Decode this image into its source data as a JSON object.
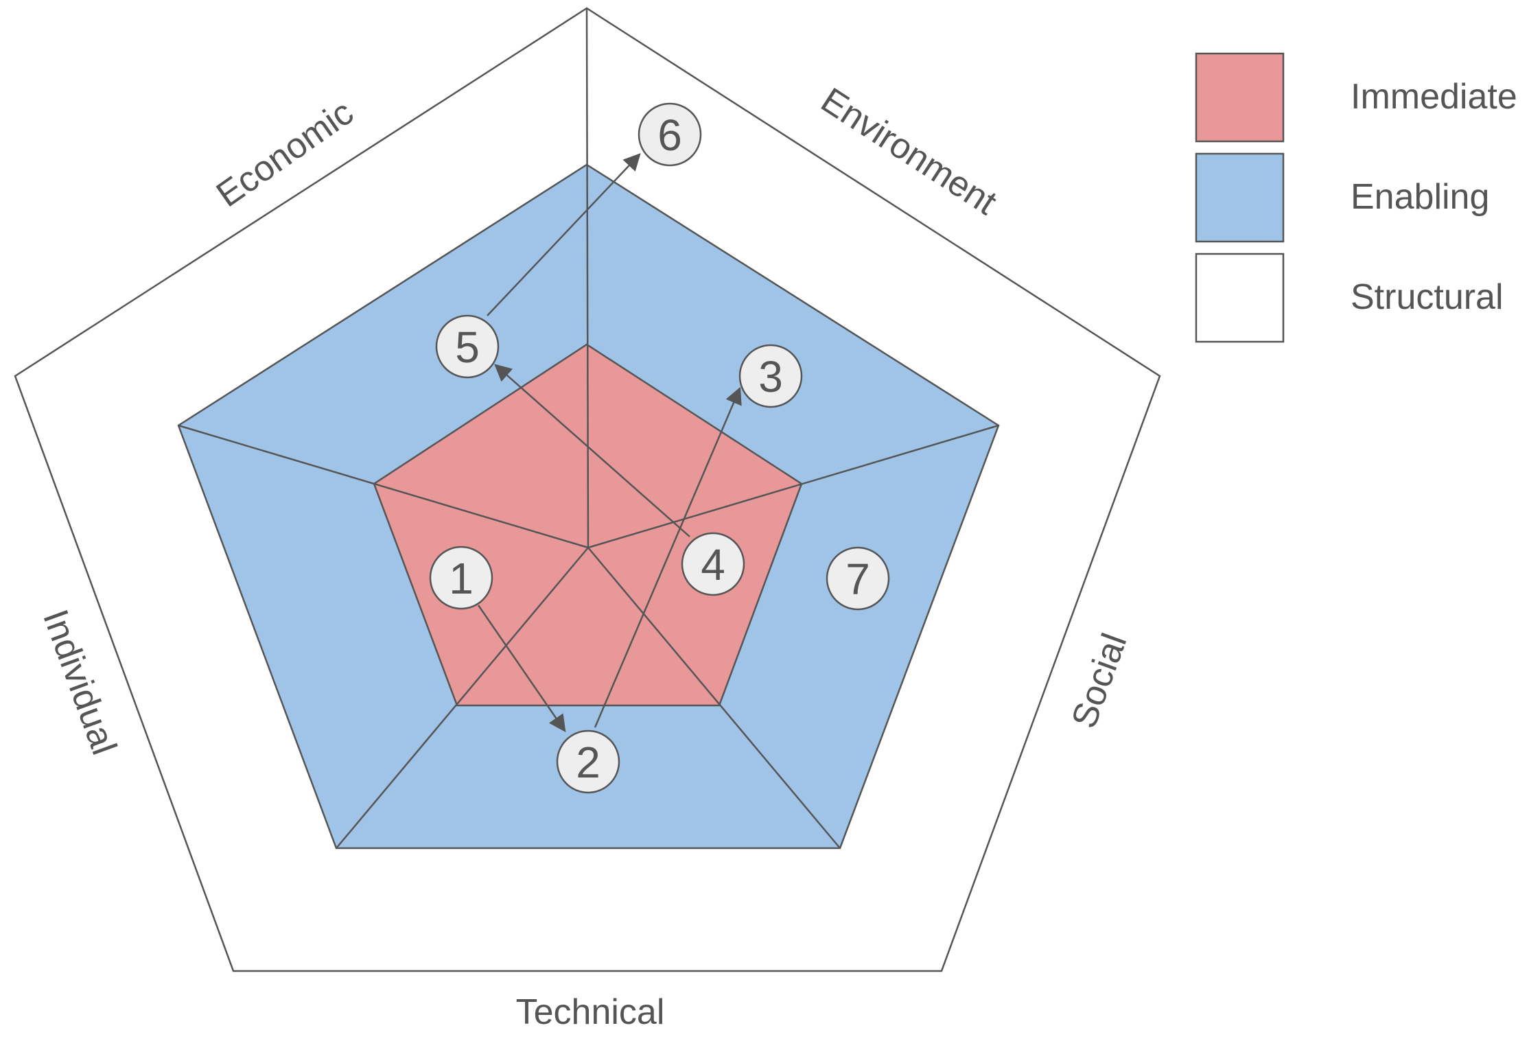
{
  "colors": {
    "immediate": "#e89898",
    "enabling": "#9fc4e8",
    "structural": "#ffffff",
    "line": "#555555",
    "node_fill": "#eeeeee",
    "text": "#555555"
  },
  "axes": [
    {
      "id": "environment",
      "label": "Environment"
    },
    {
      "id": "social",
      "label": "Social"
    },
    {
      "id": "technical",
      "label": "Technical"
    },
    {
      "id": "individual",
      "label": "Individual"
    },
    {
      "id": "economic",
      "label": "Economic"
    }
  ],
  "legend": [
    {
      "id": "immediate",
      "label": "Immediate"
    },
    {
      "id": "enabling",
      "label": "Enabling"
    },
    {
      "id": "structural",
      "label": "Structural"
    }
  ],
  "nodes": [
    {
      "id": "n1",
      "label": "1"
    },
    {
      "id": "n2",
      "label": "2"
    },
    {
      "id": "n3",
      "label": "3"
    },
    {
      "id": "n4",
      "label": "4"
    },
    {
      "id": "n5",
      "label": "5"
    },
    {
      "id": "n6",
      "label": "6"
    },
    {
      "id": "n7",
      "label": "7"
    }
  ],
  "edges": [
    {
      "from": "n1",
      "to": "n2"
    },
    {
      "from": "n2",
      "to": "n3"
    },
    {
      "from": "n4",
      "to": "n5"
    },
    {
      "from": "n5",
      "to": "n6"
    }
  ]
}
